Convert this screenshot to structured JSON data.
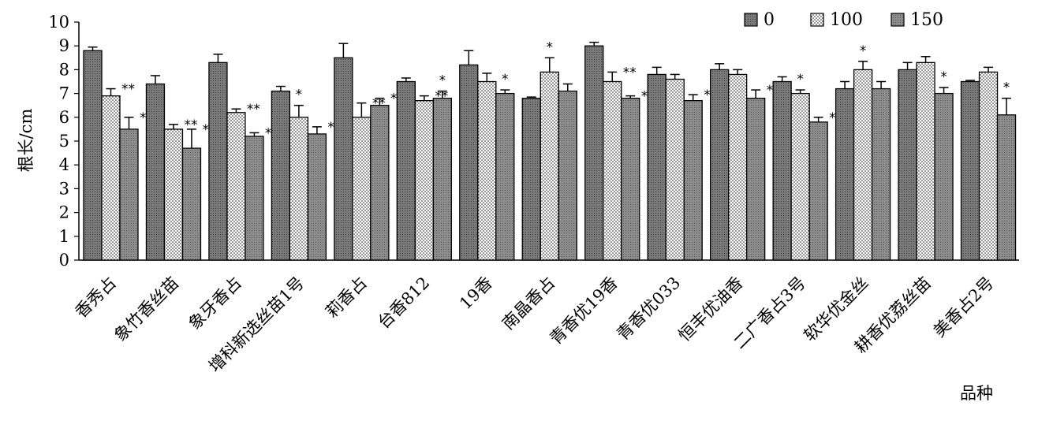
{
  "chart_data": {
    "type": "bar",
    "xlabel": "品种",
    "ylabel": "根长/cm",
    "ylim": [
      0,
      10
    ],
    "yticks": [
      "0",
      "1",
      "2",
      "3",
      "4",
      "5",
      "6",
      "7",
      "8",
      "9",
      "10"
    ],
    "legend_position": "top-right",
    "grid": false,
    "categories": [
      "香秀占",
      "象竹香丝苗",
      "象牙香占",
      "增科新选丝苗1号",
      "莉香占",
      "台香812",
      "19香",
      "南晶香占",
      "青香优19香",
      "青香优033",
      "恒丰优油香",
      "二广香占3号",
      "软华优金丝",
      "耕香优荔丝苗",
      "美香占2号"
    ],
    "series": [
      {
        "name": "0",
        "pattern": "dark-gray",
        "values": [
          8.8,
          7.4,
          8.3,
          7.1,
          8.5,
          7.5,
          8.2,
          6.8,
          9.0,
          7.8,
          8.0,
          7.5,
          7.2,
          8.0,
          7.5
        ],
        "errors": [
          0.15,
          0.35,
          0.35,
          0.2,
          0.6,
          0.15,
          0.6,
          0.05,
          0.15,
          0.3,
          0.25,
          0.2,
          0.3,
          0.3,
          0.05
        ],
        "significance": [
          "",
          "",
          "",
          "",
          "",
          "",
          "",
          "",
          "",
          "",
          "",
          "",
          "",
          "",
          ""
        ]
      },
      {
        "name": "100",
        "pattern": "dotted",
        "values": [
          6.9,
          5.5,
          6.2,
          6.0,
          6.0,
          6.7,
          7.5,
          7.9,
          7.5,
          7.6,
          7.8,
          7.0,
          8.0,
          8.3,
          7.9
        ],
        "errors": [
          0.3,
          0.2,
          0.15,
          0.5,
          0.6,
          0.2,
          0.35,
          0.6,
          0.4,
          0.2,
          0.2,
          0.15,
          0.35,
          0.25,
          0.2
        ],
        "significance": [
          "**",
          "**",
          "**",
          "*",
          "**",
          "**",
          "",
          "*",
          "**",
          "",
          "",
          "*",
          "*",
          "",
          ""
        ]
      },
      {
        "name": "150",
        "pattern": "gray",
        "values": [
          5.5,
          4.7,
          5.2,
          5.3,
          6.5,
          6.8,
          7.0,
          7.1,
          6.8,
          6.7,
          6.8,
          5.8,
          7.2,
          7.0,
          6.1
        ],
        "errors": [
          0.5,
          0.8,
          0.15,
          0.3,
          0.3,
          0.3,
          0.15,
          0.3,
          0.1,
          0.25,
          0.35,
          0.2,
          0.3,
          0.25,
          0.7
        ],
        "significance": [
          "**",
          "**",
          "**",
          "**",
          "**",
          "*",
          "*",
          "",
          "**",
          "**",
          "**",
          "**",
          "",
          "*",
          "*"
        ]
      }
    ]
  }
}
